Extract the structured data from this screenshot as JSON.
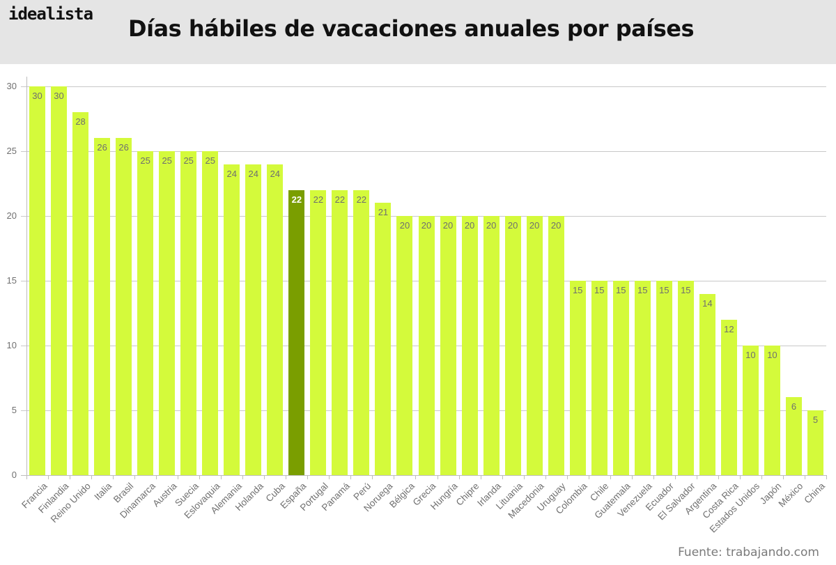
{
  "header": {
    "logo": "idealista",
    "title": "Días hábiles de vacaciones anuales por países"
  },
  "source": "Fuente: trabajando.com",
  "colors": {
    "bar": "#d4fa3b",
    "highlight": "#7a9e00",
    "header_bg": "#e5e5e5",
    "grid": "#c8c8c8"
  },
  "chart_data": {
    "type": "bar",
    "title": "Días hábiles de vacaciones anuales por países",
    "xlabel": "",
    "ylabel": "",
    "ylim": [
      0,
      30
    ],
    "yticks": [
      0,
      5,
      10,
      15,
      20,
      25,
      30
    ],
    "grid": true,
    "legend": null,
    "highlight": "España",
    "categories": [
      "Francia",
      "Finlandia",
      "Reino Unido",
      "Italia",
      "Brasil",
      "Dinamarca",
      "Austria",
      "Suecia",
      "Eslovaquia",
      "Alemania",
      "Holanda",
      "Cuba",
      "España",
      "Portugal",
      "Panamá",
      "Perú",
      "Noruega",
      "Bélgica",
      "Grecia",
      "Hungría",
      "Chipre",
      "Irlanda",
      "Lituania",
      "Macedonia",
      "Uruguay",
      "Colombia",
      "Chile",
      "Guatemala",
      "Venezuela",
      "Ecuador",
      "El Salvador",
      "Argentina",
      "Costa Rica",
      "Estados Unidos",
      "Japón",
      "México",
      "China"
    ],
    "values": [
      30,
      30,
      28,
      26,
      26,
      25,
      25,
      25,
      25,
      24,
      24,
      24,
      22,
      22,
      22,
      22,
      21,
      20,
      20,
      20,
      20,
      20,
      20,
      20,
      20,
      15,
      15,
      15,
      15,
      15,
      15,
      14,
      12,
      10,
      10,
      6,
      5
    ]
  }
}
